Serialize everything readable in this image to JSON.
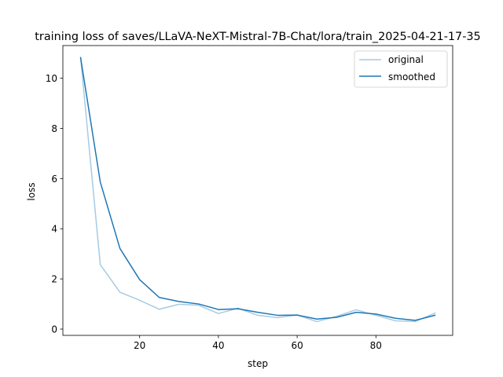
{
  "chart_data": {
    "type": "line",
    "title": "training loss of saves/LLaVA-NeXT-Mistral-7B-Chat/lora/train_2025-04-21-17-35",
    "xlabel": "step",
    "ylabel": "loss",
    "xlim": [
      0.5,
      99.5
    ],
    "ylim": [
      -0.25,
      11.3
    ],
    "xticks": [
      20,
      40,
      60,
      80
    ],
    "yticks": [
      0,
      2,
      4,
      6,
      8,
      10
    ],
    "grid": false,
    "legend_position": "top-right",
    "x": [
      5,
      10,
      15,
      20,
      25,
      30,
      35,
      40,
      45,
      50,
      55,
      60,
      65,
      70,
      75,
      80,
      85,
      90,
      95
    ],
    "series": [
      {
        "name": "original",
        "color": "#a6cbe3",
        "values": [
          10.82,
          2.57,
          1.47,
          1.15,
          0.79,
          0.99,
          0.95,
          0.62,
          0.83,
          0.55,
          0.46,
          0.56,
          0.3,
          0.51,
          0.77,
          0.55,
          0.33,
          0.3,
          0.64
        ]
      },
      {
        "name": "smoothed",
        "color": "#1f77b4",
        "values": [
          10.82,
          5.86,
          3.21,
          1.97,
          1.26,
          1.1,
          1.0,
          0.78,
          0.81,
          0.67,
          0.55,
          0.56,
          0.4,
          0.47,
          0.67,
          0.6,
          0.43,
          0.35,
          0.55
        ]
      }
    ]
  }
}
